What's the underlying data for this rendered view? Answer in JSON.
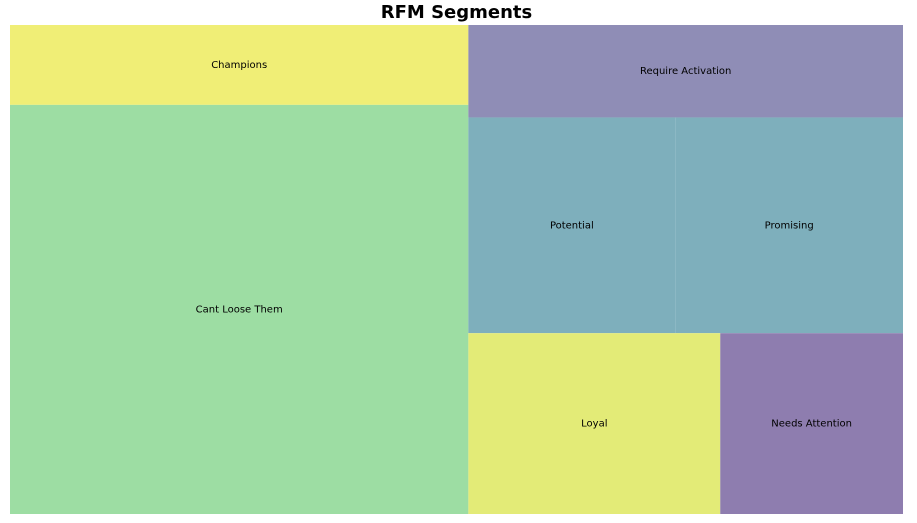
{
  "chart_data": {
    "type": "treemap",
    "title": "RFM Segments",
    "segments": [
      {
        "name": "Cant Loose Them",
        "value": 21.0,
        "color": "#9ddda3"
      },
      {
        "name": "Champions",
        "value": 4.1,
        "color": "#f0ee76"
      },
      {
        "name": "Require Activation",
        "value": 4.5,
        "color": "#8f8db6"
      },
      {
        "name": "Potential",
        "value": 5.0,
        "color": "#7eafbc"
      },
      {
        "name": "Promising",
        "value": 5.5,
        "color": "#7eafbc"
      },
      {
        "name": "Loyal",
        "value": 5.1,
        "color": "#e3eb77"
      },
      {
        "name": "Needs Attention",
        "value": 3.7,
        "color": "#8e7daf"
      }
    ]
  }
}
